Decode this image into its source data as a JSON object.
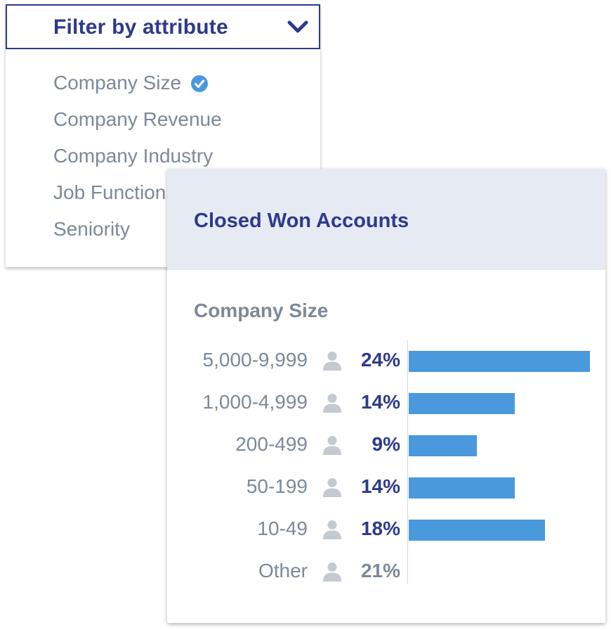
{
  "filter": {
    "title": "Filter by attribute",
    "items": [
      {
        "label": "Company Size",
        "selected": true
      },
      {
        "label": "Company Revenue",
        "selected": false
      },
      {
        "label": "Company Industry",
        "selected": false
      },
      {
        "label": "Job Function",
        "selected": false
      },
      {
        "label": "Seniority",
        "selected": false
      }
    ]
  },
  "card": {
    "title": "Closed Won Accounts",
    "section": "Company Size",
    "rows": [
      {
        "label": "5,000-9,999",
        "pct": "24%"
      },
      {
        "label": "1,000-4,999",
        "pct": "14%"
      },
      {
        "label": "200-499",
        "pct": "9%"
      },
      {
        "label": "50-199",
        "pct": "14%"
      },
      {
        "label": "10-49",
        "pct": "18%"
      },
      {
        "label": "Other",
        "pct": "21%"
      }
    ]
  },
  "chart_data": {
    "type": "bar",
    "categories": [
      "5,000-9,999",
      "1,000-4,999",
      "200-499",
      "50-199",
      "10-49",
      "Other"
    ],
    "values": [
      24,
      14,
      9,
      14,
      18,
      21
    ],
    "bar_visible": [
      true,
      true,
      true,
      true,
      true,
      false
    ],
    "unit": "%",
    "title": "Company Size"
  },
  "colors": {
    "navy": "#2d3a8c",
    "muted_text": "#7d8999",
    "bar": "#4a99dd",
    "header_bg": "#e6eaf3",
    "check": "#4a99dd"
  },
  "icons": {
    "dropdown": "chevron-down-icon",
    "selected": "check-circle-icon",
    "row": "person-icon"
  }
}
